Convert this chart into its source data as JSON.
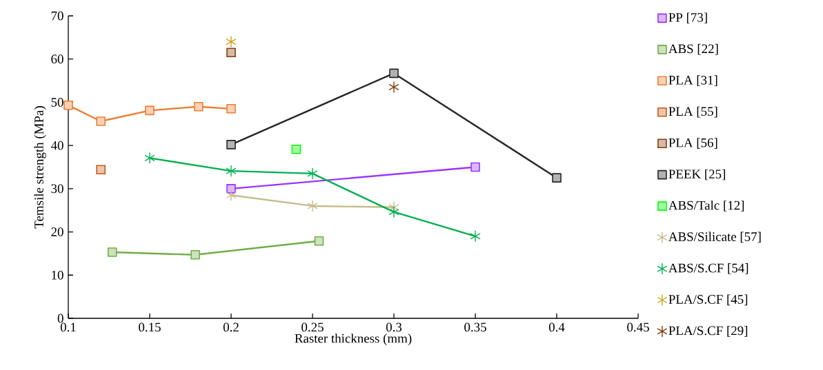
{
  "chart_data": {
    "type": "line",
    "xlabel": "Raster thickness (mm)",
    "ylabel": "Temsile strength (MPa)",
    "xlim": [
      0.1,
      0.45
    ],
    "xticks": [
      0.1,
      0.15,
      0.2,
      0.25,
      0.3,
      0.35,
      0.4,
      0.45
    ],
    "ylim": [
      0,
      70
    ],
    "yticks": [
      0,
      10,
      20,
      30,
      40,
      50,
      60,
      70
    ],
    "legend": "right",
    "series": [
      {
        "name": "PP [73]",
        "marker": "square",
        "color": "#9933ff",
        "x": [
          0.2,
          0.35
        ],
        "values": [
          30,
          35
        ]
      },
      {
        "name": "ABS [22]",
        "marker": "square",
        "color": "#70ad47",
        "x": [
          0.127,
          0.178,
          0.254
        ],
        "values": [
          15.3,
          14.7,
          17.9
        ]
      },
      {
        "name": "PLA [31]",
        "marker": "square",
        "color": "#ed7d31",
        "x": [
          0.1,
          0.12,
          0.15,
          0.18,
          0.2
        ],
        "values": [
          49.3,
          45.6,
          48.1,
          49,
          48.5
        ]
      },
      {
        "name": "PLA [55]",
        "type": "scatter",
        "marker": "square",
        "color": "#c55a11",
        "x": [
          0.12
        ],
        "values": [
          34.4
        ]
      },
      {
        "name": "PLA [56]",
        "type": "scatter",
        "marker": "square",
        "color": "#843c0c",
        "x": [
          0.2
        ],
        "values": [
          61.5
        ]
      },
      {
        "name": "PEEK [25]",
        "marker": "square",
        "color": "#262626",
        "x": [
          0.2,
          0.3,
          0.4
        ],
        "values": [
          40.2,
          56.7,
          32.5
        ]
      },
      {
        "name": "ABS/Talc [12]",
        "type": "scatter",
        "marker": "square",
        "color": "#00ff00",
        "x": [
          0.24
        ],
        "values": [
          39.1
        ]
      },
      {
        "name": "ABS/Silicate [57]",
        "marker": "cross",
        "color": "#c4bd8a",
        "x": [
          0.2,
          0.25,
          0.3
        ],
        "values": [
          28.5,
          26,
          25.7
        ]
      },
      {
        "name": "ABS/S.CF [54]",
        "marker": "cross",
        "color": "#00b050",
        "x": [
          0.15,
          0.2,
          0.25,
          0.3,
          0.35
        ],
        "values": [
          37.1,
          34.1,
          33.5,
          24.6,
          19
        ]
      },
      {
        "name": "PLA/S.CF [45]",
        "type": "scatter",
        "marker": "cross",
        "color": "#d4a017",
        "x": [
          0.2
        ],
        "values": [
          64
        ]
      },
      {
        "name": "PLA/S.CF [29]",
        "type": "scatter",
        "marker": "cross",
        "color": "#843c0c",
        "x": [
          0.3
        ],
        "values": [
          53.5
        ]
      }
    ]
  }
}
